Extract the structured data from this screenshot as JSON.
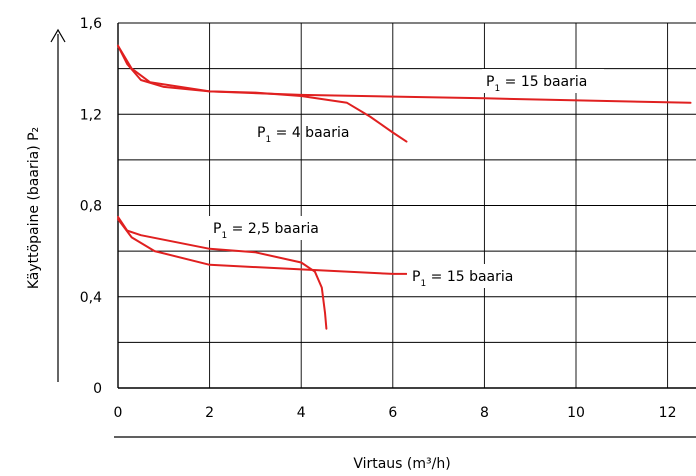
{
  "chart_data": {
    "type": "line",
    "title": "",
    "xlabel": "Virtaus (m³/h)",
    "ylabel": "Käyttöpaine (baaria) P₂",
    "xlim": [
      0,
      12.6
    ],
    "ylim": [
      0,
      1.6
    ],
    "x_ticks": [
      "0",
      "2",
      "4",
      "6",
      "8",
      "10",
      "12"
    ],
    "y_ticks": [
      "0",
      "0,4",
      "0,8",
      "1,2",
      "1,6"
    ],
    "grid": true,
    "series_color": "#e02020",
    "series": [
      {
        "label_main": "P",
        "label_sub": "1",
        "label_rest": " = 15 baaria",
        "points": [
          [
            0,
            1.5
          ],
          [
            0.2,
            1.42
          ],
          [
            0.5,
            1.35
          ],
          [
            1.0,
            1.32
          ],
          [
            2.0,
            1.3
          ],
          [
            4.0,
            1.285
          ],
          [
            8.0,
            1.27
          ],
          [
            12.5,
            1.25
          ]
        ]
      },
      {
        "label_main": "P",
        "label_sub": "1",
        "label_rest": " = 4 baaria",
        "points": [
          [
            0,
            1.5
          ],
          [
            0.3,
            1.4
          ],
          [
            0.7,
            1.34
          ],
          [
            2.0,
            1.3
          ],
          [
            3.0,
            1.295
          ],
          [
            4.0,
            1.28
          ],
          [
            5.0,
            1.25
          ],
          [
            5.5,
            1.19
          ],
          [
            6.0,
            1.12
          ],
          [
            6.3,
            1.08
          ]
        ]
      },
      {
        "label_main": "P",
        "label_sub": "1",
        "label_rest": " = 2,5 baaria",
        "points": [
          [
            0,
            0.75
          ],
          [
            0.2,
            0.69
          ],
          [
            0.5,
            0.67
          ],
          [
            2.0,
            0.61
          ],
          [
            3.0,
            0.595
          ],
          [
            4.0,
            0.55
          ],
          [
            4.3,
            0.51
          ],
          [
            4.45,
            0.44
          ],
          [
            4.52,
            0.33
          ],
          [
            4.55,
            0.26
          ]
        ]
      },
      {
        "label_main": "P",
        "label_sub": "1",
        "label_rest": " = 15 baaria",
        "points": [
          [
            0,
            0.74
          ],
          [
            0.3,
            0.66
          ],
          [
            0.8,
            0.6
          ],
          [
            2.0,
            0.54
          ],
          [
            4.0,
            0.52
          ],
          [
            6.0,
            0.5
          ],
          [
            6.3,
            0.5
          ]
        ]
      }
    ]
  }
}
